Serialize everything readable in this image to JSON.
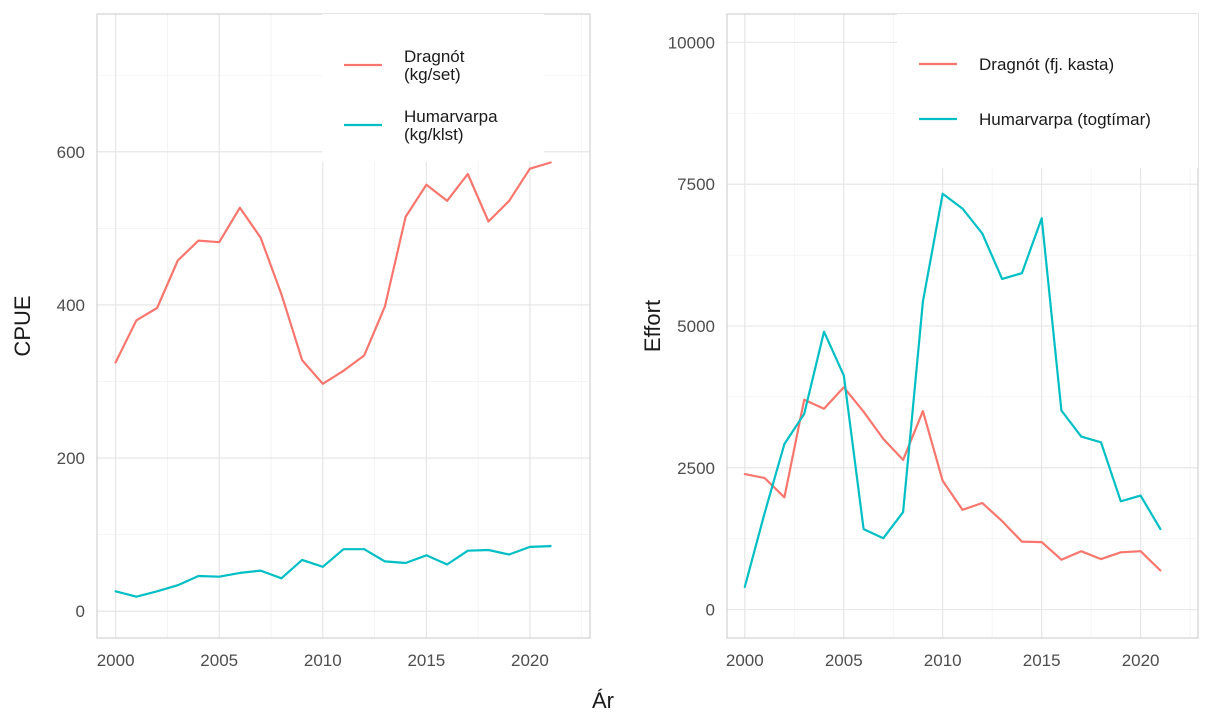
{
  "figure": {
    "shared_xlabel": "Ár"
  },
  "chart_data": [
    {
      "type": "line",
      "ylabel": "CPUE",
      "xlabel": "",
      "xlim": [
        1999.1,
        2022.9
      ],
      "ylim": [
        -35,
        780
      ],
      "x_ticks": [
        2000,
        2005,
        2010,
        2015,
        2020
      ],
      "y_ticks": [
        0,
        200,
        400,
        600
      ],
      "x": [
        2000,
        2001,
        2002,
        2003,
        2004,
        2005,
        2006,
        2007,
        2008,
        2009,
        2010,
        2011,
        2012,
        2013,
        2014,
        2015,
        2016,
        2017,
        2018,
        2019,
        2020,
        2021
      ],
      "series": [
        {
          "name": "Dragnót\n(kg/set)",
          "color": "#F8766D",
          "values": [
            325,
            380,
            396,
            458,
            484,
            482,
            527,
            488,
            414,
            328,
            297,
            314,
            334,
            398,
            515,
            557,
            536,
            571,
            509,
            536,
            578,
            586
          ]
        },
        {
          "name": "Humarvarpa\n(kg/klst)",
          "color": "#00BFC4",
          "values": [
            26,
            19,
            26,
            34,
            46,
            45,
            50,
            53,
            43,
            67,
            58,
            81,
            81,
            65,
            63,
            73,
            61,
            79,
            80,
            74,
            84,
            85
          ]
        }
      ],
      "legend": "top-right",
      "grid": true
    },
    {
      "type": "line",
      "ylabel": "Effort",
      "xlabel": "",
      "xlim": [
        1999.1,
        2022.9
      ],
      "ylim": [
        -500,
        10500
      ],
      "x_ticks": [
        2000,
        2005,
        2010,
        2015,
        2020
      ],
      "y_ticks": [
        0,
        2500,
        5000,
        7500,
        10000
      ],
      "x": [
        2000,
        2001,
        2002,
        2003,
        2004,
        2005,
        2006,
        2007,
        2008,
        2009,
        2010,
        2011,
        2012,
        2013,
        2014,
        2015,
        2016,
        2017,
        2018,
        2019,
        2020,
        2021
      ],
      "series": [
        {
          "name": "Dragnót (fj. kasta)",
          "color": "#F8766D",
          "values": [
            2390,
            2320,
            1980,
            3700,
            3540,
            3920,
            3490,
            3010,
            2640,
            3500,
            2270,
            1760,
            1880,
            1560,
            1200,
            1190,
            880,
            1030,
            890,
            1010,
            1030,
            690
          ]
        },
        {
          "name": "Humarvarpa (togtímar)",
          "color": "#00BFC4",
          "values": [
            400,
            1700,
            2920,
            3450,
            4900,
            4130,
            1420,
            1260,
            1720,
            5430,
            7330,
            7070,
            6630,
            5830,
            5930,
            6900,
            3510,
            3050,
            2950,
            1910,
            2010,
            1420
          ]
        }
      ],
      "legend": "top-right",
      "grid": true
    }
  ]
}
